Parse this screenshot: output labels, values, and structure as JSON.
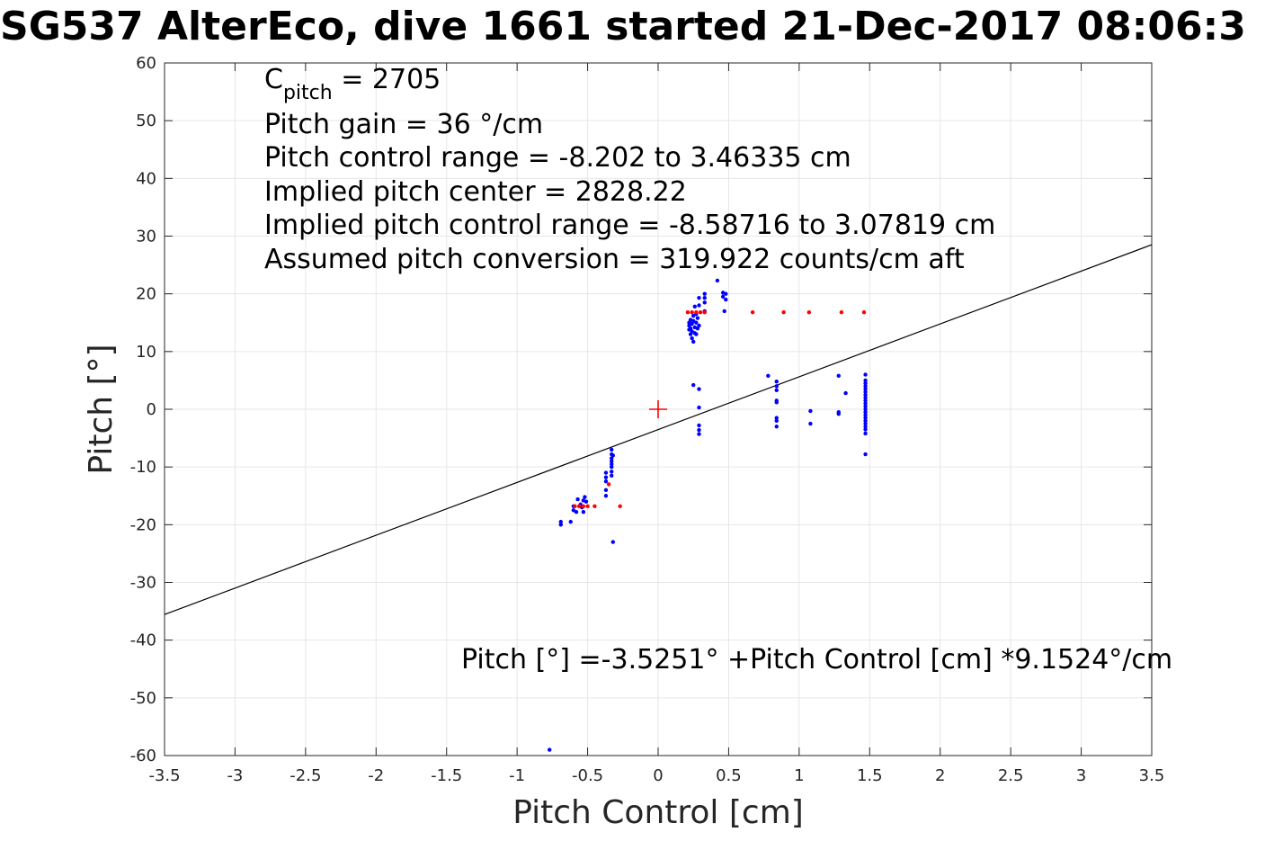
{
  "figure": {
    "title": "SG537 AlterEco, dive 1661 started 21-Dec-2017 08:06:3"
  },
  "chart_data": {
    "type": "scatter",
    "xlabel": "Pitch Control [cm]",
    "ylabel": "Pitch [°]",
    "xlim": [
      -3.5,
      3.5
    ],
    "ylim": [
      -60,
      60
    ],
    "xticks": [
      -3.5,
      -3,
      -2.5,
      -2,
      -1.5,
      -1,
      -0.5,
      0,
      0.5,
      1,
      1.5,
      2,
      2.5,
      3,
      3.5
    ],
    "xtick_labels": [
      "-3.5",
      "-3",
      "-2.5",
      "-2",
      "-1.5",
      "-1",
      "-0.5",
      "0",
      "0.5",
      "1",
      "1.5",
      "2",
      "2.5",
      "3",
      "3.5"
    ],
    "yticks": [
      -60,
      -50,
      -40,
      -30,
      -20,
      -10,
      0,
      10,
      20,
      30,
      40,
      50,
      60
    ],
    "ytick_labels": [
      "-60",
      "-50",
      "-40",
      "-30",
      "-20",
      "-10",
      "0",
      "10",
      "20",
      "30",
      "40",
      "50",
      "60"
    ],
    "grid": true,
    "colors": {
      "measured": "#0000ff",
      "flagged": "#ff0000",
      "fit": "#000000",
      "center": "#ff0000",
      "grid": "#e6e6e6"
    },
    "series": [
      {
        "marker": "dot",
        "color": "#0000ff",
        "points": [
          [
            -0.69,
            -19.5
          ],
          [
            -0.69,
            -20.0
          ],
          [
            -0.6,
            -16.8
          ],
          [
            -0.6,
            -17.5
          ],
          [
            -0.58,
            -17.8
          ],
          [
            -0.57,
            -15.6
          ],
          [
            -0.55,
            -16.5
          ],
          [
            -0.54,
            -17.0
          ],
          [
            -0.53,
            -15.8
          ],
          [
            -0.53,
            -17.8
          ],
          [
            -0.52,
            -15.2
          ],
          [
            -0.51,
            -16.0
          ],
          [
            -0.62,
            -19.5
          ],
          [
            -0.37,
            -11.0
          ],
          [
            -0.37,
            -11.8
          ],
          [
            -0.37,
            -12.5
          ],
          [
            -0.37,
            -14.0
          ],
          [
            -0.37,
            -15.0
          ],
          [
            -0.33,
            -7.0
          ],
          [
            -0.33,
            -7.8
          ],
          [
            -0.33,
            -8.5
          ],
          [
            -0.33,
            -9.0
          ],
          [
            -0.33,
            -9.5
          ],
          [
            -0.33,
            -10.0
          ],
          [
            -0.33,
            -10.8
          ],
          [
            -0.33,
            -11.5
          ],
          [
            -0.32,
            -8.0
          ],
          [
            -0.32,
            -23.0
          ],
          [
            -0.77,
            -59.0
          ],
          [
            0.22,
            13.8
          ],
          [
            0.22,
            14.5
          ],
          [
            0.22,
            15.0
          ],
          [
            0.23,
            13.0
          ],
          [
            0.23,
            14.0
          ],
          [
            0.23,
            15.5
          ],
          [
            0.24,
            12.3
          ],
          [
            0.24,
            13.5
          ],
          [
            0.24,
            14.8
          ],
          [
            0.25,
            11.7
          ],
          [
            0.25,
            15.3
          ],
          [
            0.25,
            16.2
          ],
          [
            0.26,
            13.2
          ],
          [
            0.26,
            14.2
          ],
          [
            0.26,
            17.8
          ],
          [
            0.27,
            13.0
          ],
          [
            0.27,
            15.0
          ],
          [
            0.27,
            16.5
          ],
          [
            0.28,
            14.0
          ],
          [
            0.28,
            15.8
          ],
          [
            0.29,
            19.3
          ],
          [
            0.29,
            18.0
          ],
          [
            0.29,
            14.5
          ],
          [
            0.33,
            17.0
          ],
          [
            0.33,
            18.5
          ],
          [
            0.33,
            19.3
          ],
          [
            0.33,
            20.0
          ],
          [
            0.42,
            22.3
          ],
          [
            0.46,
            19.5
          ],
          [
            0.46,
            20.2
          ],
          [
            0.47,
            17.0
          ],
          [
            0.48,
            19.0
          ],
          [
            0.48,
            20.0
          ],
          [
            0.25,
            4.2
          ],
          [
            0.29,
            3.5
          ],
          [
            0.29,
            0.3
          ],
          [
            0.29,
            -2.8
          ],
          [
            0.29,
            -3.6
          ],
          [
            0.29,
            -4.3
          ],
          [
            0.78,
            5.8
          ],
          [
            0.84,
            4.8
          ],
          [
            0.84,
            4.0
          ],
          [
            0.84,
            3.3
          ],
          [
            0.84,
            1.5
          ],
          [
            0.84,
            1.2
          ],
          [
            0.84,
            -1.5
          ],
          [
            0.84,
            -2.0
          ],
          [
            0.84,
            -3.0
          ],
          [
            1.08,
            -0.3
          ],
          [
            1.08,
            -2.5
          ],
          [
            1.28,
            5.8
          ],
          [
            1.28,
            -0.5
          ],
          [
            1.28,
            -0.8
          ],
          [
            1.33,
            2.8
          ],
          [
            1.47,
            6.0
          ],
          [
            1.47,
            5.0
          ],
          [
            1.47,
            4.5
          ],
          [
            1.47,
            4.0
          ],
          [
            1.47,
            3.5
          ],
          [
            1.47,
            3.0
          ],
          [
            1.47,
            2.5
          ],
          [
            1.47,
            2.0
          ],
          [
            1.47,
            1.5
          ],
          [
            1.47,
            1.0
          ],
          [
            1.47,
            0.5
          ],
          [
            1.47,
            0.0
          ],
          [
            1.47,
            -0.5
          ],
          [
            1.47,
            -1.0
          ],
          [
            1.47,
            -1.5
          ],
          [
            1.47,
            -2.0
          ],
          [
            1.47,
            -2.5
          ],
          [
            1.47,
            -3.0
          ],
          [
            1.47,
            -3.5
          ],
          [
            1.47,
            -4.2
          ],
          [
            1.47,
            -7.8
          ]
        ]
      },
      {
        "marker": "dot",
        "color": "#ff0000",
        "points": [
          [
            -0.59,
            -16.8
          ],
          [
            -0.56,
            -16.8
          ],
          [
            -0.53,
            -16.8
          ],
          [
            -0.5,
            -16.8
          ],
          [
            -0.45,
            -16.8
          ],
          [
            -0.35,
            -13.0
          ],
          [
            -0.27,
            -16.8
          ],
          [
            0.21,
            16.8
          ],
          [
            0.24,
            16.8
          ],
          [
            0.27,
            16.8
          ],
          [
            0.3,
            16.8
          ],
          [
            0.33,
            16.8
          ],
          [
            0.67,
            16.8
          ],
          [
            0.89,
            16.8
          ],
          [
            1.07,
            16.8
          ],
          [
            1.3,
            16.8
          ],
          [
            1.46,
            16.8
          ]
        ]
      }
    ],
    "fit_line": {
      "intercept": -3.5251,
      "slope": 9.1524
    },
    "center_marker": {
      "x": 0,
      "y": 0,
      "marker": "+"
    }
  },
  "annotations": {
    "c_pitch_symbol": "C",
    "c_pitch_subscript": "pitch",
    "c_pitch_value": " = 2705",
    "lines": [
      "Pitch gain = 36 °/cm",
      "Pitch control range = -8.202 to 3.46335 cm",
      "Implied pitch center = 2828.22",
      "Implied pitch control range = -8.58716 to 3.07819 cm",
      "Assumed pitch conversion = 319.922 counts/cm aft"
    ],
    "equation": "Pitch [°] =-3.5251° +Pitch Control [cm] *9.1524°/cm"
  }
}
